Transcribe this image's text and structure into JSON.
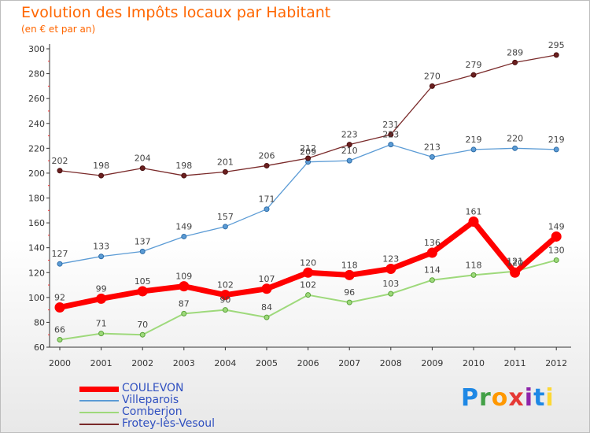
{
  "title": "Evolution des Impôts locaux par Habitant",
  "subtitle": "(en € et par an)",
  "logo": {
    "text": "Proxiti",
    "colors": [
      "#1e88e5",
      "#43a047",
      "#ff9800",
      "#e53935",
      "#8e24aa",
      "#1e88e5",
      "#fdd835"
    ]
  },
  "chart_data": {
    "type": "line",
    "x": [
      "2000",
      "2001",
      "2002",
      "2003",
      "2004",
      "2005",
      "2006",
      "2007",
      "2008",
      "2009",
      "2010",
      "2011",
      "2012"
    ],
    "ylim": [
      60,
      300
    ],
    "yticks": [
      60,
      80,
      100,
      120,
      140,
      160,
      180,
      200,
      220,
      240,
      260,
      280,
      300
    ],
    "grid": false,
    "legend_position": "bottom-left",
    "series": [
      {
        "name": "COULEVON",
        "color": "#ff0000",
        "values": [
          92,
          99,
          105,
          109,
          102,
          107,
          120,
          118,
          123,
          136,
          161,
          120,
          149
        ]
      },
      {
        "name": "Villeparois",
        "color": "#5b9bd5",
        "values": [
          127,
          133,
          137,
          149,
          157,
          171,
          209,
          210,
          223,
          213,
          219,
          220,
          219
        ]
      },
      {
        "name": "Comberjon",
        "color": "#9ed97b",
        "values": [
          66,
          71,
          70,
          87,
          90,
          84,
          102,
          96,
          103,
          114,
          118,
          121,
          130
        ]
      },
      {
        "name": "Frotey-lès-Vesoul",
        "color": "#7a2a2a",
        "values": [
          202,
          198,
          204,
          198,
          201,
          206,
          212,
          223,
          231,
          270,
          279,
          289,
          295
        ]
      }
    ]
  }
}
